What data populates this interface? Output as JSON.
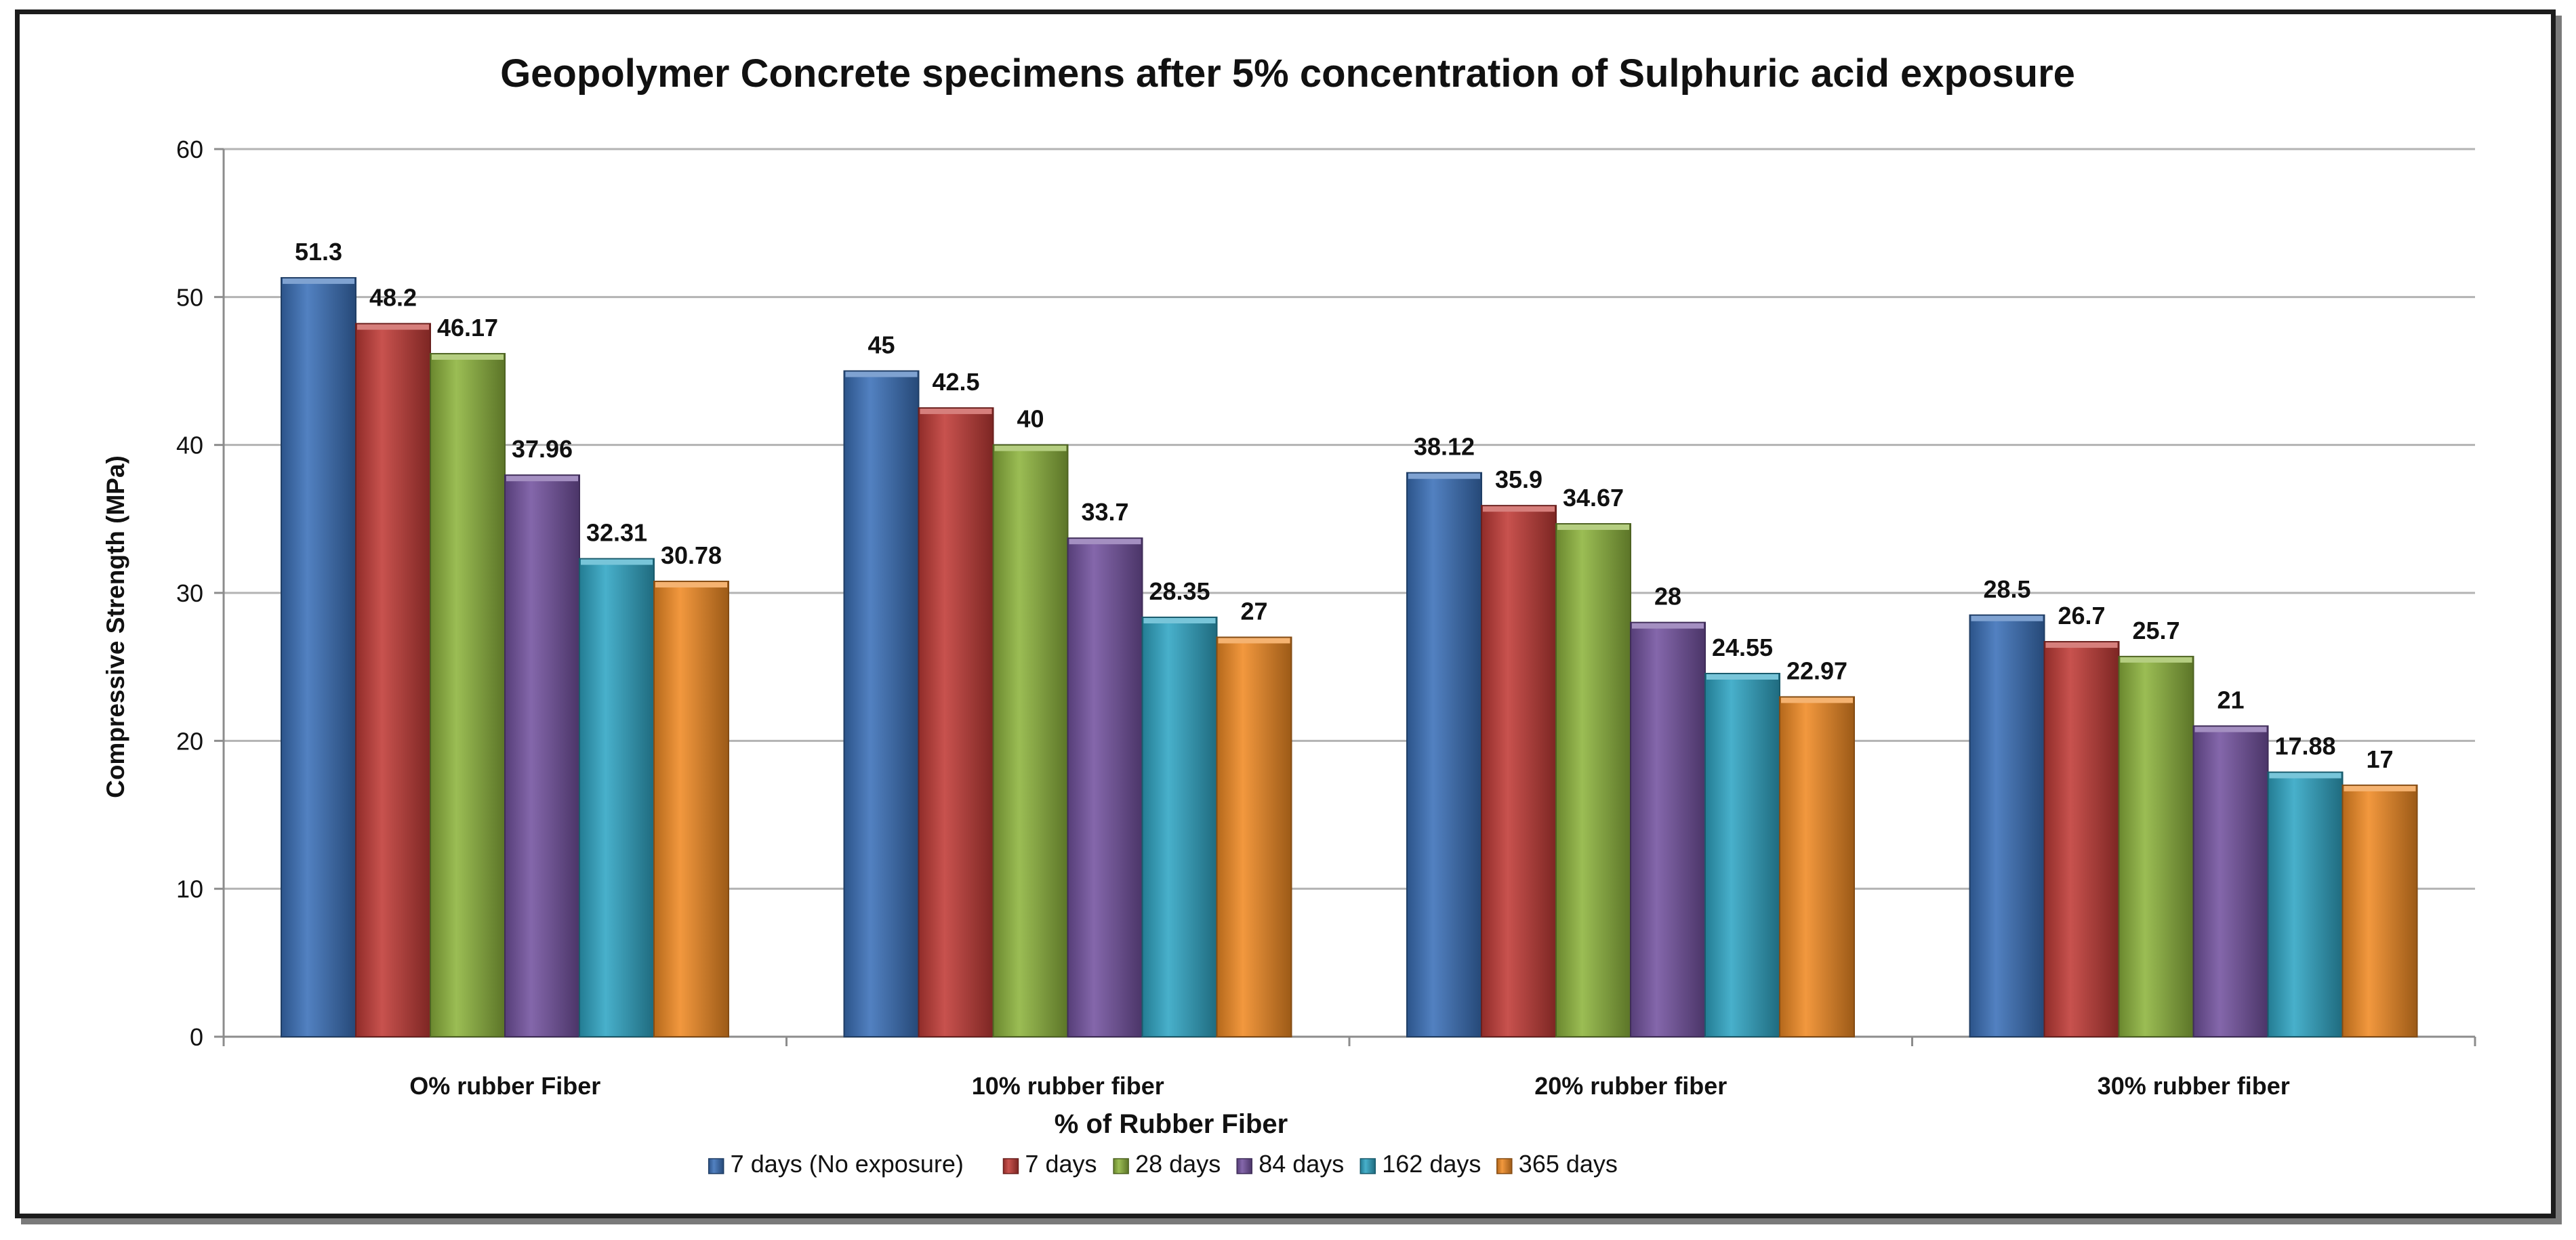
{
  "chart_data": {
    "type": "bar",
    "title": "Geopolymer Concrete specimens after 5% concentration of Sulphuric acid exposure",
    "xlabel": "% of Rubber Fiber",
    "ylabel": "Compressive Strength  (MPa)",
    "ylim": [
      0,
      60
    ],
    "yticks": [
      "0",
      "10",
      "20",
      "30",
      "40",
      "50",
      "60"
    ],
    "grid": true,
    "legend_position": "bottom",
    "categories": [
      "O% rubber Fiber",
      "10% rubber fiber",
      "20% rubber fiber",
      "30% rubber fiber"
    ],
    "series": [
      {
        "name": "7 days (No exposure)",
        "color": "#3a70b8",
        "values": [
          51.3,
          45,
          38.12,
          28.5
        ],
        "labels": [
          "51.3",
          "45",
          "38.12",
          "28.5"
        ]
      },
      {
        "name": "7 days",
        "color": "#c03a36",
        "values": [
          48.2,
          42.5,
          35.9,
          26.7
        ],
        "labels": [
          "48.2",
          "42.5",
          "35.9",
          "26.7"
        ]
      },
      {
        "name": "28 days",
        "color": "#8db43d",
        "values": [
          46.17,
          40,
          34.67,
          25.7
        ],
        "labels": [
          "46.17",
          "40",
          "34.67",
          "25.7"
        ]
      },
      {
        "name": "84 days",
        "color": "#7352a0",
        "values": [
          37.96,
          33.7,
          28,
          21
        ],
        "labels": [
          "37.96",
          "33.7",
          "28",
          "21"
        ]
      },
      {
        "name": "162 days",
        "color": "#2fa5c4",
        "values": [
          32.31,
          28.35,
          24.55,
          17.88
        ],
        "labels": [
          "32.31",
          "28.35",
          "24.55",
          "17.88"
        ]
      },
      {
        "name": "365 days",
        "color": "#f08a24",
        "values": [
          30.78,
          27,
          22.97,
          17
        ],
        "labels": [
          "30.78",
          "27",
          "22.97",
          "17"
        ]
      }
    ]
  }
}
